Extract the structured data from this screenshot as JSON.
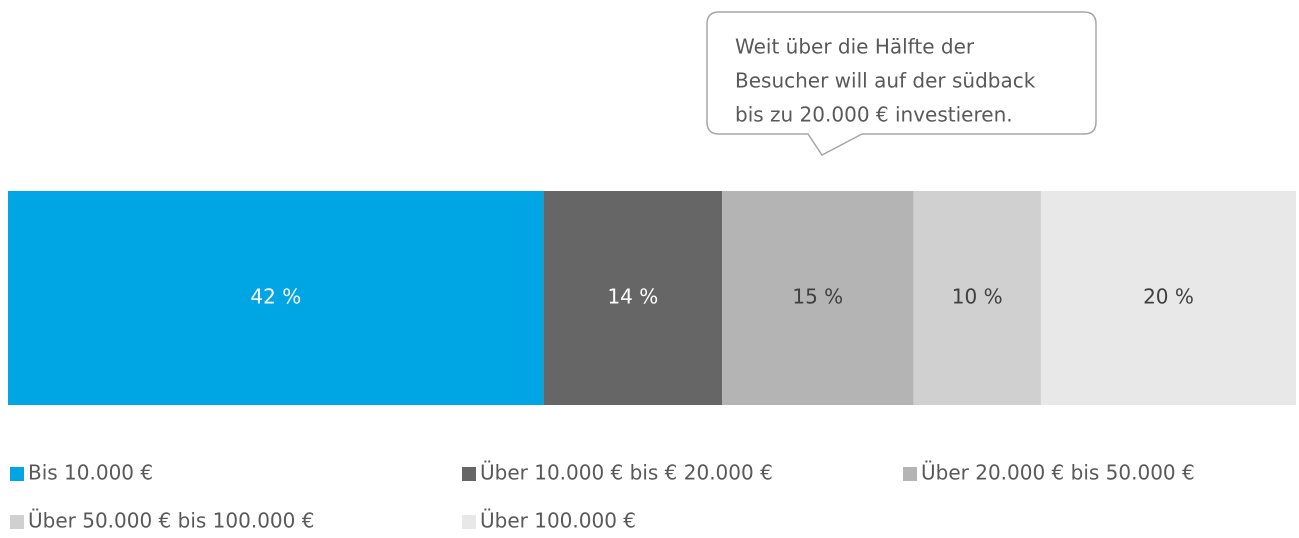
{
  "chart_data": {
    "type": "stacked-bar",
    "orientation": "horizontal",
    "annotation": [
      "Weit über die Hälfte der",
      "Besucher will auf der südback",
      "bis zu 20.000 € investieren."
    ],
    "series": [
      {
        "name": "Bis 10.000 €",
        "color": "#00a5e3",
        "values": [
          42
        ],
        "value_labels": [
          "42 %"
        ]
      },
      {
        "name": "Über 10.000 € bis € 20.000 €",
        "color": "#666666",
        "values": [
          14
        ],
        "value_labels": [
          "14 %"
        ]
      },
      {
        "name": "Über 20.000 € bis 50.000 €",
        "color": "#b4b4b4",
        "values": [
          15
        ],
        "value_labels": [
          "15 %"
        ]
      },
      {
        "name": "Über 50.000 € bis 100.000 €",
        "color": "#d0d0d0",
        "values": [
          10
        ],
        "value_labels": [
          "10 %"
        ]
      },
      {
        "name": "Über 100.000 €",
        "color": "#e8e8e8",
        "values": [
          20
        ],
        "value_labels": [
          "20 %"
        ]
      }
    ],
    "legend": "bottom"
  }
}
